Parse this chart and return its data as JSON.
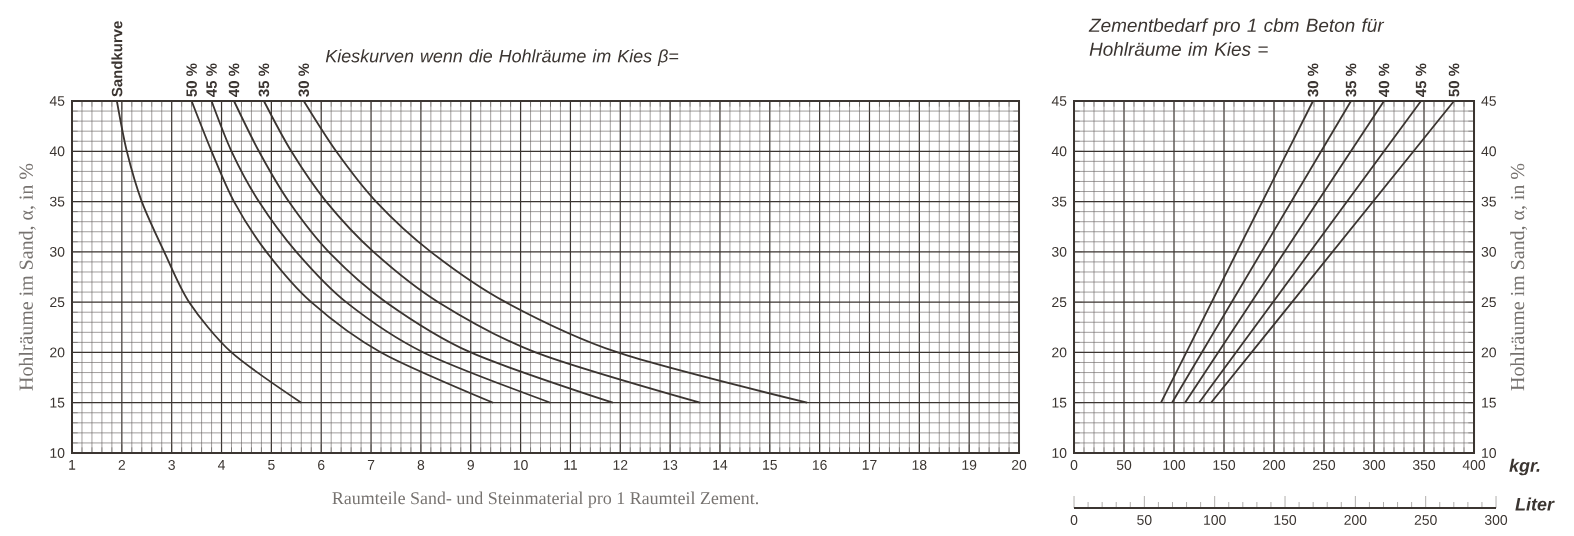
{
  "chart_data": [
    {
      "type": "line",
      "xlabel": "Raumteile Sand- und Steinmaterial pro 1 Raumteil Zement.",
      "ylabel": "Hohlräume im Sand, α, in %",
      "xlim": [
        1,
        20
      ],
      "ylim": [
        10,
        45
      ],
      "xticks": [
        1,
        2,
        3,
        4,
        5,
        6,
        7,
        8,
        9,
        10,
        11,
        12,
        13,
        14,
        15,
        16,
        17,
        18,
        19,
        20
      ],
      "yticks": [
        10,
        15,
        20,
        25,
        30,
        35,
        40,
        45
      ],
      "grid": true,
      "marker": "none",
      "annotations": [
        "Kieskurven wenn die Hohlräume im Kies β="
      ],
      "series": [
        {
          "name": "Sandkurve",
          "color": "#3b3531",
          "x": [
            1.9,
            2.1,
            2.4,
            2.85,
            3.35,
            4.2,
            5.6
          ],
          "values": [
            45,
            40,
            35,
            30,
            25,
            20,
            15
          ]
        },
        {
          "name": "50 %",
          "color": "#3b3531",
          "x": [
            3.4,
            3.8,
            4.25,
            4.9,
            5.8,
            7.2,
            9.45
          ],
          "values": [
            45,
            40,
            35,
            30,
            25,
            20,
            15
          ]
        },
        {
          "name": "45 %",
          "color": "#3b3531",
          "x": [
            3.8,
            4.2,
            4.75,
            5.5,
            6.5,
            8.05,
            10.6
          ],
          "values": [
            45,
            40,
            35,
            30,
            25,
            20,
            15
          ]
        },
        {
          "name": "40 %",
          "color": "#3b3531",
          "x": [
            4.25,
            4.75,
            5.35,
            6.15,
            7.3,
            9.0,
            11.85
          ],
          "values": [
            45,
            40,
            35,
            30,
            25,
            20,
            15
          ]
        },
        {
          "name": "35 %",
          "color": "#3b3531",
          "x": [
            4.85,
            5.4,
            6.1,
            7.05,
            8.35,
            10.3,
            13.6
          ],
          "values": [
            45,
            40,
            35,
            30,
            25,
            20,
            15
          ]
        },
        {
          "name": "30 %",
          "color": "#3b3531",
          "x": [
            5.65,
            6.3,
            7.1,
            8.2,
            9.7,
            11.95,
            15.75
          ],
          "values": [
            45,
            40,
            35,
            30,
            25,
            20,
            15
          ]
        }
      ]
    },
    {
      "type": "line",
      "title": "Zementbedarf pro 1 cbm Beton für Hohlräume im Kies =",
      "xlabel": "kgr.",
      "y2label": "Hohlräume im Sand, α, in %",
      "x2label": "Liter",
      "xlim": [
        0,
        400
      ],
      "ylim": [
        10,
        45
      ],
      "y2lim": [
        10,
        45
      ],
      "x2lim": [
        0,
        300
      ],
      "xticks": [
        0,
        50,
        100,
        150,
        200,
        250,
        300,
        350,
        400
      ],
      "yticks": [
        10,
        15,
        20,
        25,
        30,
        35,
        40,
        45
      ],
      "y2ticks": [
        10,
        15,
        20,
        25,
        30,
        35,
        40,
        45
      ],
      "x2ticks": [
        0,
        50,
        100,
        150,
        200,
        250,
        300
      ],
      "grid": true,
      "marker": "none",
      "series": [
        {
          "name": "30 %",
          "color": "#3b3531",
          "x": [
            239,
            87
          ],
          "values": [
            45,
            15
          ]
        },
        {
          "name": "35 %",
          "color": "#3b3531",
          "x": [
            277,
            98
          ],
          "values": [
            45,
            15
          ]
        },
        {
          "name": "40 %",
          "color": "#3b3531",
          "x": [
            310,
            111
          ],
          "values": [
            45,
            15
          ]
        },
        {
          "name": "45 %",
          "color": "#3b3531",
          "x": [
            347,
            125
          ],
          "values": [
            45,
            15
          ]
        },
        {
          "name": "50 %",
          "color": "#3b3531",
          "x": [
            380,
            137
          ],
          "values": [
            45,
            15
          ]
        }
      ]
    }
  ]
}
